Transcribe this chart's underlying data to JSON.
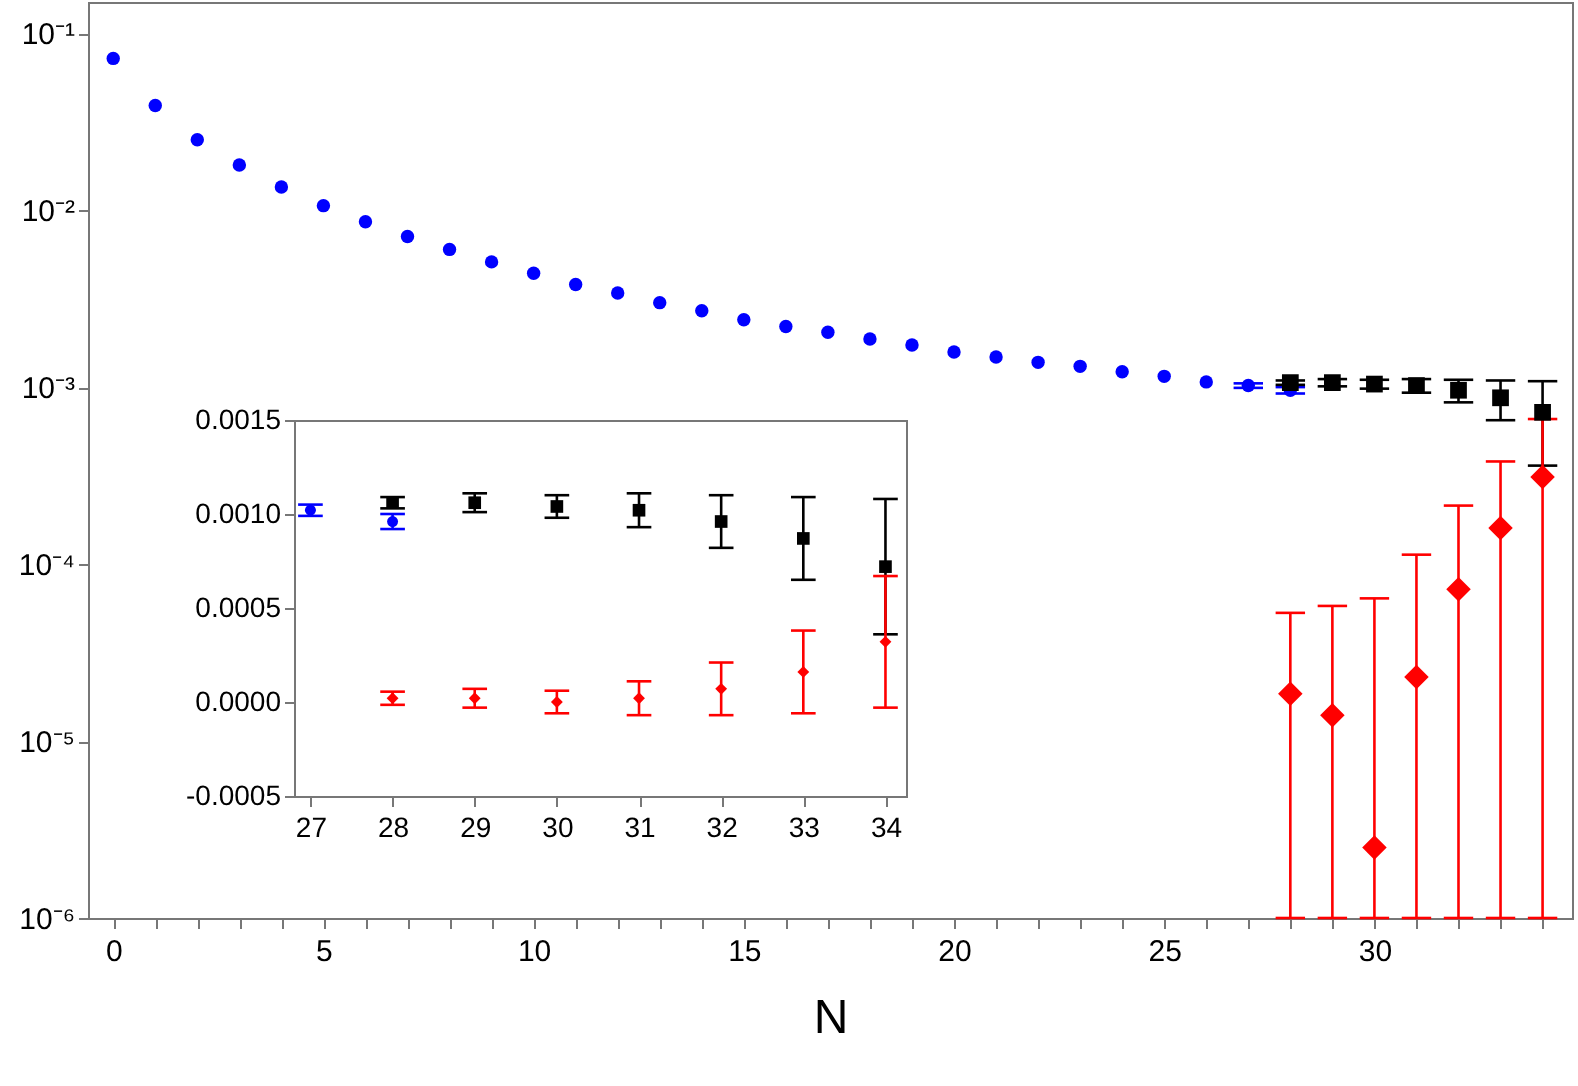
{
  "chart_data": [
    {
      "type": "scatter",
      "xlabel": "N",
      "log": "y",
      "xlim": [
        -0.6,
        34.7
      ],
      "ylim": [
        1e-06,
        0.15
      ],
      "xticks": [
        0,
        {
          "value": 1,
          "label": null
        },
        {
          "value": 2,
          "label": null
        },
        {
          "value": 3,
          "label": null
        },
        {
          "value": 4,
          "label": null
        },
        5,
        {
          "value": 6,
          "label": null
        },
        {
          "value": 7,
          "label": null
        },
        {
          "value": 8,
          "label": null
        },
        {
          "value": 9,
          "label": null
        },
        10,
        {
          "value": 11,
          "label": null
        },
        {
          "value": 12,
          "label": null
        },
        {
          "value": 13,
          "label": null
        },
        {
          "value": 14,
          "label": null
        },
        15,
        {
          "value": 16,
          "label": null
        },
        {
          "value": 17,
          "label": null
        },
        {
          "value": 18,
          "label": null
        },
        {
          "value": 19,
          "label": null
        },
        20,
        {
          "value": 21,
          "label": null
        },
        {
          "value": 22,
          "label": null
        },
        {
          "value": 23,
          "label": null
        },
        {
          "value": 24,
          "label": null
        },
        25,
        {
          "value": 26,
          "label": null
        },
        {
          "value": 27,
          "label": null
        },
        {
          "value": 28,
          "label": null
        },
        {
          "value": 29,
          "label": null
        },
        30,
        {
          "value": 31,
          "label": null
        },
        {
          "value": 32,
          "label": null
        },
        {
          "value": 33,
          "label": null
        },
        {
          "value": 34,
          "label": null
        }
      ],
      "yticks": [
        {
          "value": 1e-06,
          "label": "10⁻⁶"
        },
        {
          "value": 1e-05,
          "label": "10⁻⁵"
        },
        {
          "value": 0.0001,
          "label": "10⁻⁴"
        },
        {
          "value": 0.001,
          "label": "10⁻³"
        },
        {
          "value": 0.01,
          "label": "10⁻²"
        },
        {
          "value": 0.1,
          "label": "10⁻¹"
        }
      ],
      "series": [
        {
          "color": "#0000ff",
          "marker": "circle",
          "x": [
            0,
            1,
            2,
            3,
            4,
            5,
            6,
            7,
            8,
            9,
            10,
            11,
            12,
            13,
            14,
            15,
            16,
            17,
            18,
            19,
            20,
            21,
            22,
            23,
            24,
            25,
            26,
            27,
            28
          ],
          "values": [
            0.072,
            0.039,
            0.025,
            0.018,
            0.0135,
            0.0106,
            0.0086,
            0.0071,
            0.006,
            0.0051,
            0.0044,
            0.0038,
            0.0034,
            0.003,
            0.0027,
            0.0024,
            0.0022,
            0.00204,
            0.00187,
            0.00173,
            0.00158,
            0.00148,
            0.00138,
            0.00131,
            0.00122,
            0.00115,
            0.00107,
            0.00102,
            0.00096
          ],
          "errors": [
            null,
            null,
            null,
            null,
            null,
            null,
            null,
            null,
            null,
            null,
            null,
            null,
            null,
            null,
            null,
            null,
            null,
            null,
            null,
            null,
            null,
            null,
            null,
            null,
            null,
            null,
            null,
            3e-05,
            4e-05
          ]
        },
        {
          "color": "#000000",
          "marker": "square",
          "x": [
            28,
            29,
            30,
            31,
            32,
            33,
            34
          ],
          "values": [
            0.00106,
            0.00106,
            0.00104,
            0.00102,
            0.00096,
            0.00087,
            0.00072
          ],
          "errors": [
            3e-05,
            5e-05,
            6e-05,
            9e-05,
            0.00014,
            0.00022,
            0.00036
          ]
        },
        {
          "color": "#ff0000",
          "marker": "diamond",
          "x": [
            28,
            29,
            30,
            31,
            32,
            33,
            34
          ],
          "values": [
            1.85e-05,
            1.4e-05,
            2.5e-06,
            2.3e-05,
            7.2e-05,
            0.00016,
            0.00031
          ],
          "errors": [
            [
              1e-06,
              5.3e-05
            ],
            [
              1e-06,
              5.8e-05
            ],
            [
              1e-06,
              6.4e-05
            ],
            [
              1e-06,
              0.000113
            ],
            [
              1e-06,
              0.000214
            ],
            [
              1e-06,
              0.00038
            ],
            [
              1e-06,
              0.00066
            ]
          ]
        }
      ]
    },
    {
      "type": "scatter",
      "xlim": [
        26.8,
        34.25
      ],
      "ylim": [
        -0.0005,
        0.0015
      ],
      "xticks": [
        27,
        28,
        29,
        30,
        31,
        32,
        33,
        34
      ],
      "yticks": [
        {
          "value": -0.0005,
          "label": "-0.0005"
        },
        {
          "value": 0,
          "label": "0.0000"
        },
        {
          "value": 0.0005,
          "label": "0.0005"
        },
        {
          "value": 0.001,
          "label": "0.0010"
        },
        {
          "value": 0.0015,
          "label": "0.0015"
        }
      ],
      "series": [
        {
          "color": "#0000ff",
          "marker": "circle",
          "x": [
            27,
            28
          ],
          "values": [
            0.00102,
            0.00096
          ],
          "errors": [
            3e-05,
            4e-05
          ]
        },
        {
          "color": "#000000",
          "marker": "square",
          "x": [
            28,
            29,
            30,
            31,
            32,
            33,
            34
          ],
          "values": [
            0.00106,
            0.00106,
            0.00104,
            0.00102,
            0.00096,
            0.00087,
            0.00072
          ],
          "errors": [
            3e-05,
            5e-05,
            6e-05,
            9e-05,
            0.00014,
            0.00022,
            0.00036
          ]
        },
        {
          "color": "#ff0000",
          "marker": "diamond",
          "x": [
            28,
            29,
            30,
            31,
            32,
            33,
            34
          ],
          "values": [
            2e-05,
            2e-05,
            0,
            2e-05,
            7e-05,
            0.00016,
            0.00032
          ],
          "errors": [
            3.5e-05,
            5e-05,
            6e-05,
            9e-05,
            0.00014,
            0.00022,
            0.00035
          ]
        }
      ]
    }
  ]
}
